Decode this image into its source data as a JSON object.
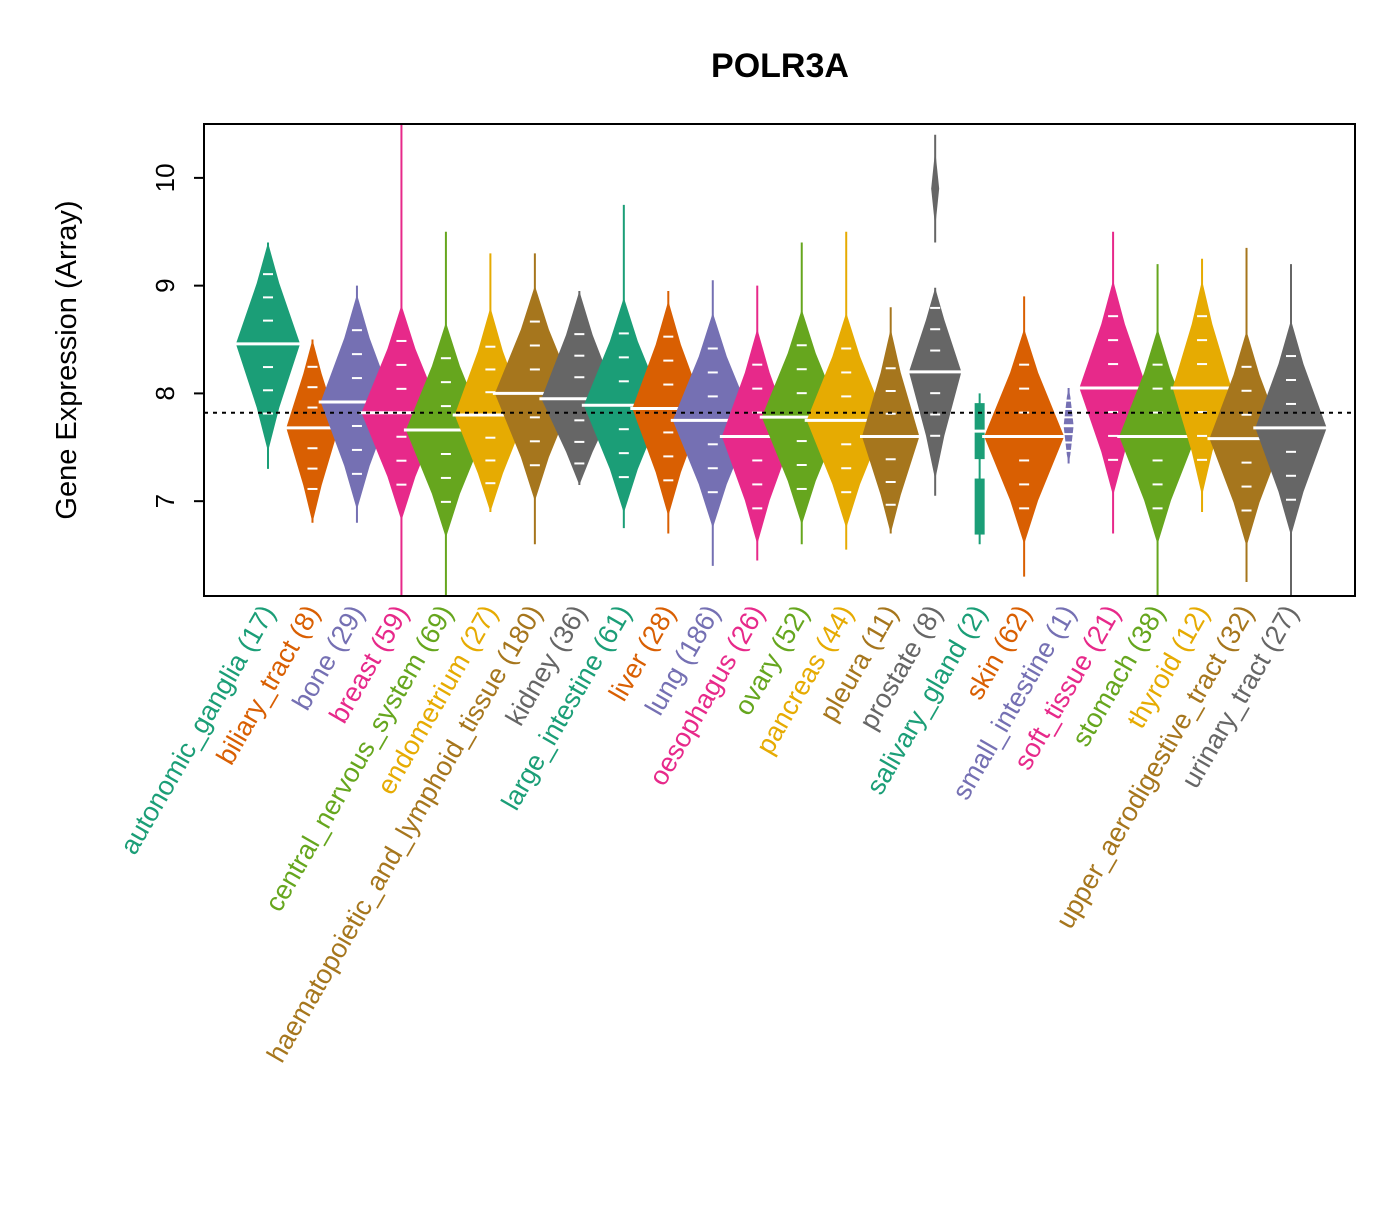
{
  "chart_data": {
    "type": "violin",
    "title": "POLR3A",
    "xlabel": "",
    "ylabel": "Gene Expression (Array)",
    "ylim": [
      6.12,
      10.5
    ],
    "yticks": [
      7,
      8,
      9,
      10
    ],
    "reference_line": 7.82,
    "grid": false,
    "palette": [
      "#1B9E77",
      "#D95F02",
      "#7570B3",
      "#E7298A",
      "#66A61E",
      "#E6AB02",
      "#A6761D",
      "#666666"
    ],
    "categories": [
      {
        "name": "autonomic_ganglia",
        "n": 17,
        "label": "autonomic_ganglia (17)",
        "median": 8.46,
        "min": 7.3,
        "max": 9.4
      },
      {
        "name": "biliary_tract",
        "n": 8,
        "label": "biliary_tract (8)",
        "median": 7.68,
        "min": 6.8,
        "max": 8.5
      },
      {
        "name": "bone",
        "n": 29,
        "label": "bone (29)",
        "median": 7.92,
        "min": 6.8,
        "max": 9.0
      },
      {
        "name": "breast",
        "n": 59,
        "label": "breast (59)",
        "median": 7.82,
        "min": 6.12,
        "max": 10.5
      },
      {
        "name": "central_nervous_system",
        "n": 69,
        "label": "central_nervous_system (69)",
        "median": 7.66,
        "min": 6.12,
        "max": 9.5
      },
      {
        "name": "endometrium",
        "n": 27,
        "label": "endometrium (27)",
        "median": 7.8,
        "min": 6.9,
        "max": 9.3
      },
      {
        "name": "haematopoietic_and_lymphoid_tissue",
        "n": 180,
        "label": "haematopoietic_and_lymphoid_tissue (180)",
        "median": 8.0,
        "min": 6.6,
        "max": 9.3
      },
      {
        "name": "kidney",
        "n": 36,
        "label": "kidney (36)",
        "median": 7.95,
        "min": 7.15,
        "max": 8.95
      },
      {
        "name": "large_intestine",
        "n": 61,
        "label": "large_intestine (61)",
        "median": 7.89,
        "min": 6.75,
        "max": 9.75
      },
      {
        "name": "liver",
        "n": 28,
        "label": "liver (28)",
        "median": 7.86,
        "min": 6.7,
        "max": 8.95
      },
      {
        "name": "lung",
        "n": 186,
        "label": "lung (186)",
        "median": 7.75,
        "min": 6.4,
        "max": 9.05
      },
      {
        "name": "oesophagus",
        "n": 26,
        "label": "oesophagus (26)",
        "median": 7.6,
        "min": 6.45,
        "max": 9.0
      },
      {
        "name": "ovary",
        "n": 52,
        "label": "ovary (52)",
        "median": 7.78,
        "min": 6.6,
        "max": 9.4
      },
      {
        "name": "pancreas",
        "n": 44,
        "label": "pancreas (44)",
        "median": 7.75,
        "min": 6.55,
        "max": 9.5
      },
      {
        "name": "pleura",
        "n": 11,
        "label": "pleura (11)",
        "median": 7.6,
        "min": 6.7,
        "max": 8.8
      },
      {
        "name": "prostate",
        "n": 8,
        "label": "prostate (8)",
        "median": 8.2,
        "min": 7.05,
        "max": 8.98,
        "outlier_cluster": [
          9.4,
          10.4
        ]
      },
      {
        "name": "salivary_gland",
        "n": 2,
        "label": "salivary_gland (2)",
        "median": 7.65,
        "min": 6.6,
        "max": 8.0,
        "points": [
          7.65,
          6.95
        ]
      },
      {
        "name": "skin",
        "n": 62,
        "label": "skin (62)",
        "median": 7.6,
        "min": 6.3,
        "max": 8.9
      },
      {
        "name": "small_intestine",
        "n": 1,
        "label": "small_intestine (1)",
        "median": 7.7,
        "min": 7.35,
        "max": 8.05
      },
      {
        "name": "soft_tissue",
        "n": 21,
        "label": "soft_tissue (21)",
        "median": 8.05,
        "min": 6.7,
        "max": 9.5
      },
      {
        "name": "stomach",
        "n": 38,
        "label": "stomach (38)",
        "median": 7.6,
        "min": 6.12,
        "max": 9.2
      },
      {
        "name": "thyroid",
        "n": 12,
        "label": "thyroid (12)",
        "median": 8.05,
        "min": 6.9,
        "max": 9.25
      },
      {
        "name": "upper_aerodigestive_tract",
        "n": 32,
        "label": "upper_aerodigestive_tract (32)",
        "median": 7.58,
        "min": 6.25,
        "max": 9.35
      },
      {
        "name": "urinary_tract",
        "n": 27,
        "label": "urinary_tract (27)",
        "median": 7.68,
        "min": 6.12,
        "max": 9.2
      }
    ]
  }
}
